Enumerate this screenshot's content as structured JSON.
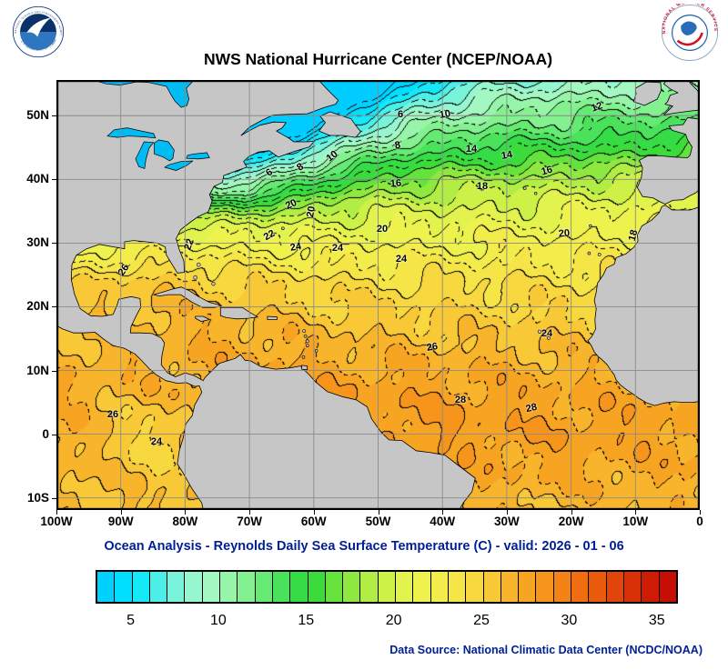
{
  "header": {
    "title": "NWS National Hurricane Center (NCEP/NOAA)",
    "noaa_logo": {
      "ring_text_top": "NATIONAL OCEANIC AND ATMOSPHERIC ADMINISTRATION",
      "ring_text_bottom": "U.S. DEPARTMENT OF COMMERCE"
    },
    "nws_logo": {
      "ring_text": "NATIONAL WEATHER SERVICE"
    }
  },
  "subtitle": "Ocean Analysis - Reynolds Daily Sea Surface Temperature (C) - valid: 2026 - 01 - 06",
  "footer": {
    "data_source": "Data Source: National Climatic Data Center (NCDC/NOAA)"
  },
  "chart_data": {
    "type": "heatmap",
    "title": "NWS National Hurricane Center (NCEP/NOAA)",
    "subtitle": "Ocean Analysis - Reynolds Daily Sea Surface Temperature (C) - valid: 2026 - 01 - 06",
    "units": "C",
    "valid_date": "2026 - 01 - 06",
    "lon_range_labels": [
      "100W",
      "0"
    ],
    "lat_range_labels": [
      "10S",
      "50N"
    ],
    "x_ticks": [
      {
        "label": "100W",
        "lon": -100
      },
      {
        "label": "90W",
        "lon": -90
      },
      {
        "label": "80W",
        "lon": -80
      },
      {
        "label": "70W",
        "lon": -70
      },
      {
        "label": "60W",
        "lon": -60
      },
      {
        "label": "50W",
        "lon": -50
      },
      {
        "label": "40W",
        "lon": -40
      },
      {
        "label": "30W",
        "lon": -30
      },
      {
        "label": "20W",
        "lon": -20
      },
      {
        "label": "10W",
        "lon": -10
      },
      {
        "label": "0",
        "lon": 0
      }
    ],
    "y_ticks": [
      {
        "label": "50N",
        "lat": 50
      },
      {
        "label": "40N",
        "lat": 40
      },
      {
        "label": "30N",
        "lat": 30
      },
      {
        "label": "20N",
        "lat": 20
      },
      {
        "label": "10N",
        "lat": 10
      },
      {
        "label": "0",
        "lat": 0
      },
      {
        "label": "10S",
        "lat": -10
      }
    ],
    "contour_interval_c": 1,
    "labeled_isotherms_c": [
      6,
      8,
      10,
      12,
      14,
      16,
      18,
      20,
      22,
      24,
      26,
      28
    ],
    "isotherm_labels": [
      {
        "t": "6",
        "x": 234,
        "y": 102,
        "r": -35
      },
      {
        "t": "8",
        "x": 268,
        "y": 96,
        "r": -35
      },
      {
        "t": "10",
        "x": 303,
        "y": 84,
        "r": -38
      },
      {
        "t": "8",
        "x": 375,
        "y": 72,
        "r": -10
      },
      {
        "t": "6",
        "x": 378,
        "y": 38,
        "r": 0
      },
      {
        "t": "10",
        "x": 427,
        "y": 38,
        "r": -10
      },
      {
        "t": "12",
        "x": 594,
        "y": 30,
        "r": -20
      },
      {
        "t": "14",
        "x": 456,
        "y": 76,
        "r": 0
      },
      {
        "t": "14",
        "x": 495,
        "y": 83,
        "r": -10
      },
      {
        "t": "16",
        "x": 373,
        "y": 114,
        "r": -5
      },
      {
        "t": "18",
        "x": 468,
        "y": 117,
        "r": 0
      },
      {
        "t": "16",
        "x": 539,
        "y": 100,
        "r": -15
      },
      {
        "t": "20",
        "x": 258,
        "y": 137,
        "r": -25
      },
      {
        "t": "20",
        "x": 280,
        "y": 145,
        "r": -80
      },
      {
        "t": "22",
        "x": 234,
        "y": 171,
        "r": -30
      },
      {
        "t": "22",
        "x": 146,
        "y": 181,
        "r": -70
      },
      {
        "t": "24",
        "x": 263,
        "y": 184,
        "r": -10
      },
      {
        "t": "24",
        "x": 309,
        "y": 185,
        "r": 0
      },
      {
        "t": "24",
        "x": 379,
        "y": 197,
        "r": 0
      },
      {
        "t": "20",
        "x": 358,
        "y": 164,
        "r": 0
      },
      {
        "t": "20",
        "x": 558,
        "y": 169,
        "r": -5
      },
      {
        "t": "18",
        "x": 634,
        "y": 171,
        "r": -75
      },
      {
        "t": "26",
        "x": 74,
        "y": 209,
        "r": -55
      },
      {
        "t": "24",
        "x": 539,
        "y": 279,
        "r": 0
      },
      {
        "t": "26",
        "x": 413,
        "y": 294,
        "r": -10
      },
      {
        "t": "28",
        "x": 444,
        "y": 352,
        "r": 0
      },
      {
        "t": "28",
        "x": 522,
        "y": 361,
        "r": -12
      },
      {
        "t": "26",
        "x": 62,
        "y": 368,
        "r": 0
      },
      {
        "t": "24",
        "x": 110,
        "y": 398,
        "r": 0
      }
    ],
    "colorbar": {
      "min": 3,
      "max": 36,
      "step": 1,
      "tick_values": [
        5,
        10,
        15,
        20,
        25,
        30,
        35
      ],
      "anchors": [
        {
          "t": 3,
          "c": "#00CCFF"
        },
        {
          "t": 5,
          "c": "#00E6FF"
        },
        {
          "t": 7,
          "c": "#6CF2DE"
        },
        {
          "t": 9,
          "c": "#A8F8CA"
        },
        {
          "t": 11,
          "c": "#90F49C"
        },
        {
          "t": 13,
          "c": "#52E562"
        },
        {
          "t": 15,
          "c": "#28D83A"
        },
        {
          "t": 17,
          "c": "#80E63E"
        },
        {
          "t": 19,
          "c": "#C6F046"
        },
        {
          "t": 21,
          "c": "#ECF44E"
        },
        {
          "t": 23,
          "c": "#F6EA4A"
        },
        {
          "t": 25,
          "c": "#F8D03A"
        },
        {
          "t": 27,
          "c": "#F8AA26"
        },
        {
          "t": 29,
          "c": "#F68A18"
        },
        {
          "t": 31,
          "c": "#EE620E"
        },
        {
          "t": 33,
          "c": "#DC3808"
        },
        {
          "t": 35,
          "c": "#C60E04"
        }
      ]
    },
    "colors": {
      "land": "#C6C6C6",
      "lake": "#00BCF2",
      "grid": "#8A8A8A",
      "frame": "#000000",
      "contour": "#000000",
      "title_text": "#000000",
      "subtitle_text": "#001E96",
      "footer_text": "#001E96"
    }
  }
}
